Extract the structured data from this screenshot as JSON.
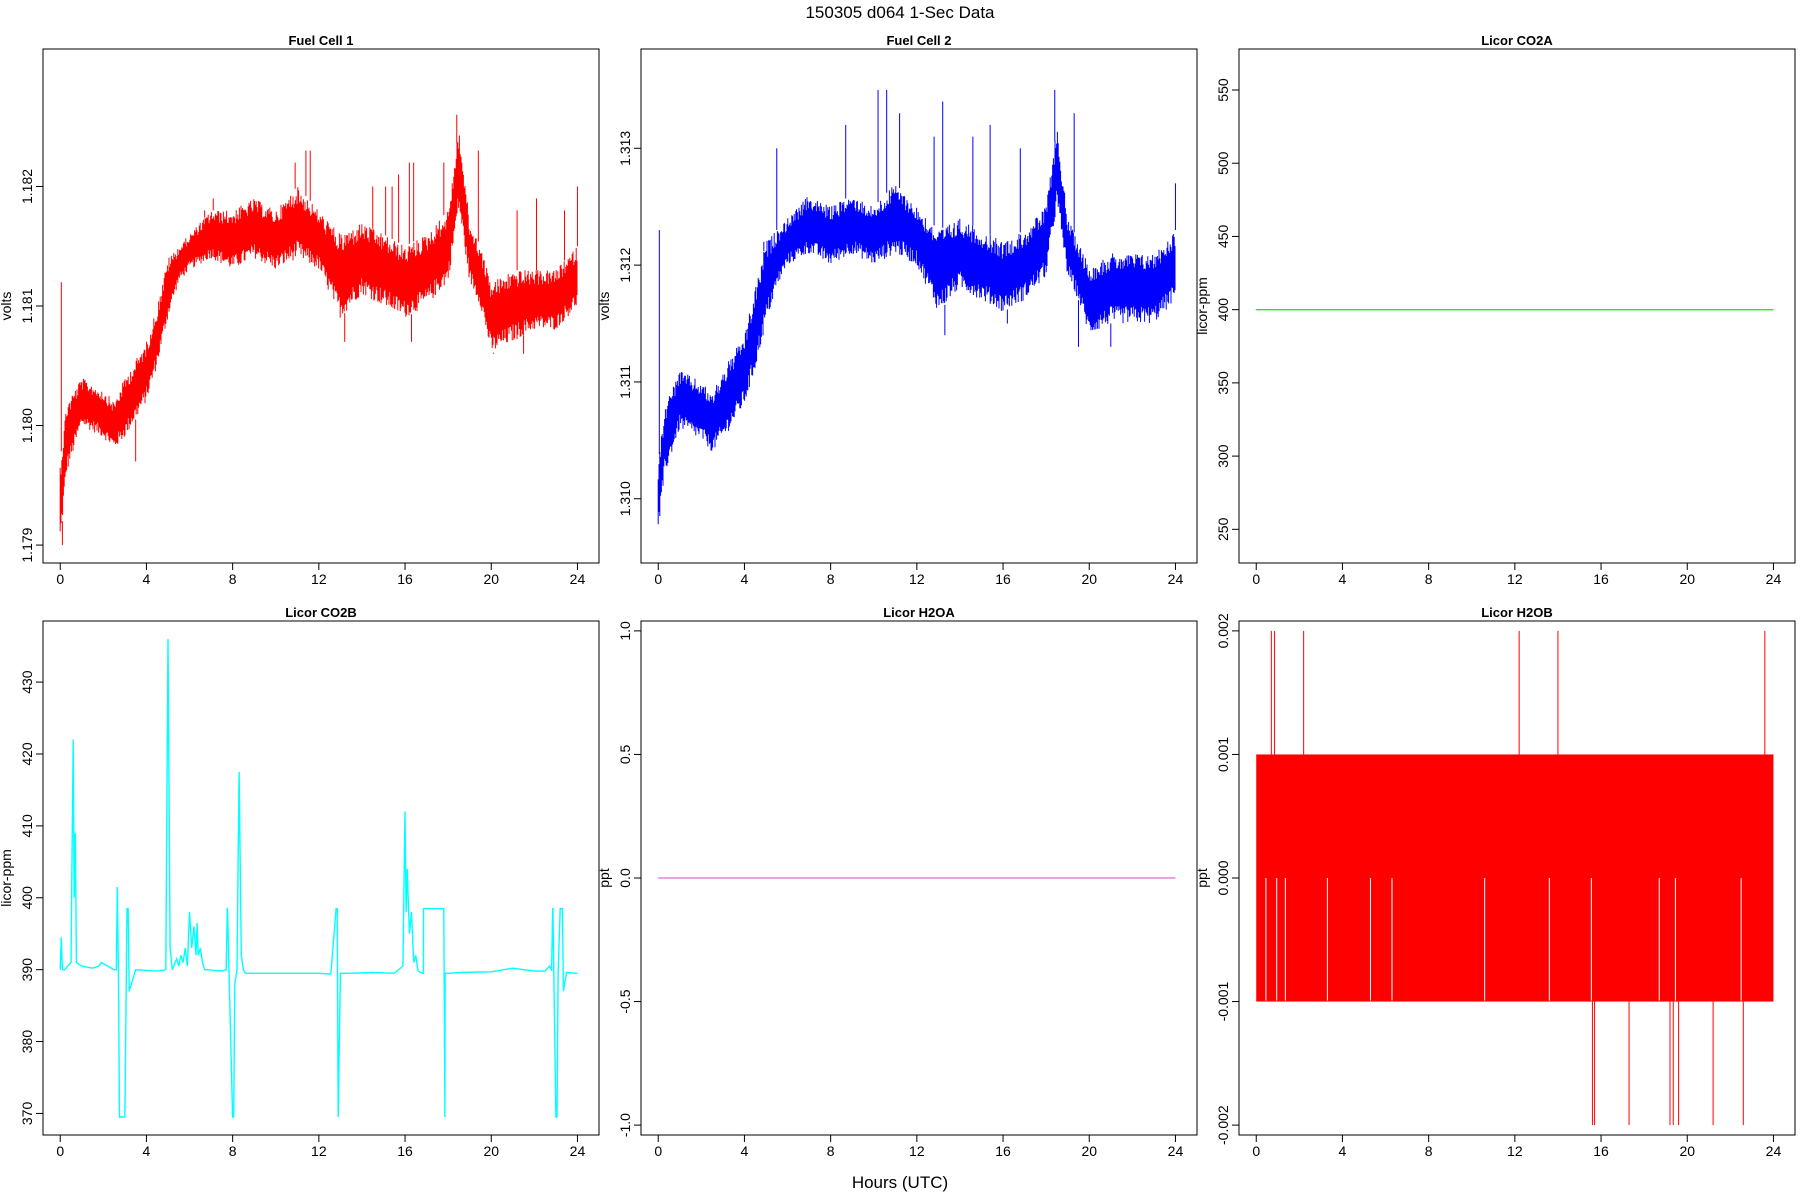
{
  "figure": {
    "title": "150305   d064   1-Sec Data",
    "xlabel": "Hours (UTC)"
  },
  "chart_data": [
    {
      "type": "line",
      "title": "Fuel Cell 1",
      "ylabel": "volts",
      "color": "#ff0000",
      "xlim": [
        -0.8,
        25.0
      ],
      "ylim": [
        1.17885,
        1.18315
      ],
      "xticks": [
        0,
        4,
        8,
        12,
        16,
        20,
        24
      ],
      "yticks": [
        1.179,
        1.18,
        1.181,
        1.182
      ],
      "ytick_labels": [
        "1.179",
        "1.180",
        "1.181",
        "1.182"
      ],
      "series": [
        {
          "band": {
            "x": [
              0,
              0.3,
              1.0,
              2.0,
              2.5,
              3.0,
              4.0,
              4.5,
              5.0,
              5.5,
              6.0,
              7.0,
              8.0,
              9.0,
              10.0,
              11.0,
              12.0,
              13.0,
              14.0,
              15.0,
              16.0,
              17.0,
              18.0,
              18.5,
              19.0,
              19.5,
              20.0,
              21.0,
              22.0,
              23.0,
              24.0
            ],
            "low": [
              1.179,
              1.1796,
              1.18,
              1.1799,
              1.1798,
              1.1799,
              1.1802,
              1.1805,
              1.1809,
              1.1812,
              1.1813,
              1.1814,
              1.1813,
              1.1814,
              1.1813,
              1.1814,
              1.1813,
              1.1809,
              1.1811,
              1.181,
              1.1809,
              1.181,
              1.1812,
              1.1818,
              1.1812,
              1.181,
              1.1806,
              1.1807,
              1.1808,
              1.1808,
              1.181
            ],
            "high": [
              1.1797,
              1.1802,
              1.1804,
              1.1803,
              1.1802,
              1.1804,
              1.1807,
              1.181,
              1.1814,
              1.1815,
              1.1816,
              1.1818,
              1.1818,
              1.1819,
              1.1818,
              1.182,
              1.1818,
              1.1816,
              1.1817,
              1.1816,
              1.1815,
              1.1816,
              1.1818,
              1.1825,
              1.1817,
              1.1815,
              1.1812,
              1.1813,
              1.1813,
              1.1813,
              1.1815
            ]
          },
          "spikes": [
            [
              0.05,
              1.1812
            ],
            [
              6.7,
              1.1818
            ],
            [
              7.1,
              1.1819
            ],
            [
              10.9,
              1.1822
            ],
            [
              11.4,
              1.1823
            ],
            [
              11.6,
              1.1823
            ],
            [
              14.5,
              1.182
            ],
            [
              15.1,
              1.182
            ],
            [
              15.4,
              1.182
            ],
            [
              15.7,
              1.1821
            ],
            [
              16.2,
              1.1822
            ],
            [
              16.4,
              1.1822
            ],
            [
              17.8,
              1.1822
            ],
            [
              18.4,
              1.1826
            ],
            [
              19.4,
              1.1823
            ],
            [
              21.2,
              1.1818
            ],
            [
              22.1,
              1.1819
            ],
            [
              23.4,
              1.1818
            ],
            [
              24.0,
              1.182
            ]
          ],
          "dips": [
            [
              0.1,
              1.179
            ],
            [
              3.5,
              1.1797
            ],
            [
              13.2,
              1.1807
            ],
            [
              16.3,
              1.1807
            ],
            [
              20.1,
              1.1806
            ],
            [
              21.5,
              1.1806
            ]
          ]
        }
      ]
    },
    {
      "type": "line",
      "title": "Fuel Cell 2",
      "ylabel": "volts",
      "color": "#0000ff",
      "xlim": [
        -0.8,
        25.0
      ],
      "ylim": [
        1.30945,
        1.31385
      ],
      "xticks": [
        0,
        4,
        8,
        12,
        16,
        20,
        24
      ],
      "yticks": [
        1.31,
        1.311,
        1.312,
        1.313
      ],
      "ytick_labels": [
        "1.310",
        "1.311",
        "1.312",
        "1.313"
      ],
      "series": [
        {
          "band": {
            "x": [
              0,
              0.3,
              1.0,
              2.0,
              2.5,
              3.0,
              4.0,
              4.5,
              5.0,
              5.5,
              6.0,
              7.0,
              8.0,
              9.0,
              10.0,
              11.0,
              12.0,
              13.0,
              14.0,
              15.0,
              16.0,
              17.0,
              18.0,
              18.5,
              19.0,
              19.5,
              20.0,
              21.0,
              22.0,
              23.0,
              24.0
            ],
            "low": [
              1.3097,
              1.3102,
              1.3106,
              1.3105,
              1.3104,
              1.3105,
              1.3108,
              1.3111,
              1.3115,
              1.3118,
              1.312,
              1.3121,
              1.312,
              1.3121,
              1.312,
              1.3121,
              1.312,
              1.3116,
              1.3118,
              1.3117,
              1.3116,
              1.3117,
              1.3119,
              1.3125,
              1.3119,
              1.3117,
              1.3114,
              1.3115,
              1.3115,
              1.3115,
              1.3117
            ],
            "high": [
              1.3103,
              1.3108,
              1.3111,
              1.311,
              1.3109,
              1.3111,
              1.3114,
              1.3118,
              1.3122,
              1.3123,
              1.3124,
              1.3126,
              1.3125,
              1.3126,
              1.3125,
              1.3127,
              1.3125,
              1.3123,
              1.3124,
              1.3123,
              1.3122,
              1.3123,
              1.3125,
              1.3132,
              1.3124,
              1.3122,
              1.312,
              1.3121,
              1.3121,
              1.3121,
              1.3123
            ]
          },
          "spikes": [
            [
              0.05,
              1.3123
            ],
            [
              4.9,
              1.3122
            ],
            [
              5.5,
              1.313
            ],
            [
              8.7,
              1.3132
            ],
            [
              10.2,
              1.3135
            ],
            [
              10.6,
              1.3135
            ],
            [
              11.2,
              1.3133
            ],
            [
              12.8,
              1.3131
            ],
            [
              13.2,
              1.3134
            ],
            [
              14.6,
              1.3131
            ],
            [
              15.4,
              1.3132
            ],
            [
              16.8,
              1.313
            ],
            [
              18.4,
              1.3135
            ],
            [
              19.3,
              1.3133
            ],
            [
              24.0,
              1.3127
            ]
          ],
          "dips": [
            [
              0.0,
              1.3097
            ],
            [
              13.3,
              1.3114
            ],
            [
              16.2,
              1.3115
            ],
            [
              19.5,
              1.3113
            ],
            [
              21.0,
              1.3113
            ]
          ]
        }
      ]
    },
    {
      "type": "line",
      "title": "Licor CO2A",
      "ylabel": "licor-ppm",
      "color": "#00ff00",
      "xlim": [
        -0.8,
        25.0
      ],
      "ylim": [
        227,
        578
      ],
      "xticks": [
        0,
        4,
        8,
        12,
        16,
        20,
        24
      ],
      "yticks": [
        250,
        300,
        350,
        400,
        450,
        500,
        550
      ],
      "ytick_labels": [
        "250",
        "300",
        "350",
        "400",
        "450",
        "500",
        "550"
      ],
      "series": [
        {
          "x": [
            0,
            24
          ],
          "y": [
            400,
            400
          ]
        }
      ]
    },
    {
      "type": "line",
      "title": "Licor CO2B",
      "ylabel": "licor-ppm",
      "color": "#00ffff",
      "xlim": [
        -0.8,
        25.0
      ],
      "ylim": [
        367,
        438.5
      ],
      "xticks": [
        0,
        4,
        8,
        12,
        16,
        20,
        24
      ],
      "yticks": [
        370,
        380,
        390,
        400,
        410,
        420,
        430
      ],
      "ytick_labels": [
        "370",
        "380",
        "390",
        "400",
        "410",
        "420",
        "430"
      ],
      "series": [
        {
          "x": [
            0,
            0.05,
            0.1,
            0.2,
            0.5,
            0.6,
            0.65,
            0.7,
            0.75,
            1.0,
            1.5,
            1.8,
            1.9,
            2.5,
            2.6,
            2.65,
            2.7,
            2.75,
            2.76,
            3.0,
            3.1,
            3.15,
            3.2,
            3.5,
            4.5,
            4.9,
            5.0,
            5.1,
            5.2,
            5.4,
            5.5,
            5.6,
            5.7,
            5.8,
            5.9,
            6.0,
            6.1,
            6.2,
            6.3,
            6.35,
            6.4,
            6.5,
            6.6,
            6.7,
            6.8,
            7.5,
            7.7,
            7.75,
            7.76,
            8.0,
            8.05,
            8.1,
            8.2,
            8.3,
            8.4,
            8.5,
            8.6,
            9.0,
            12.0,
            12.5,
            12.55,
            12.56,
            12.8,
            12.85,
            12.9,
            13.0,
            13.5,
            14.5,
            15.5,
            15.9,
            16.0,
            16.05,
            16.1,
            16.2,
            16.3,
            16.4,
            16.5,
            16.6,
            16.8,
            16.85,
            16.86,
            17.8,
            17.85,
            17.86,
            18.0,
            18.5,
            20.0,
            21.0,
            22.0,
            22.5,
            22.7,
            22.8,
            22.85,
            22.86,
            23.0,
            23.05,
            23.1,
            23.2,
            23.3,
            23.35,
            23.4,
            23.5,
            24.0
          ],
          "y": [
            390,
            394.5,
            390,
            390,
            391,
            422,
            400,
            409,
            391,
            390.5,
            390.2,
            390.5,
            391,
            390,
            390,
            401.5,
            390,
            369.5,
            369.5,
            369.5,
            398.5,
            398.5,
            387,
            390,
            389.8,
            390,
            436,
            393,
            390,
            391.5,
            390.5,
            392,
            391,
            393,
            390.5,
            398,
            393,
            396,
            392,
            396.5,
            392,
            393,
            391,
            390,
            390,
            389.8,
            390,
            398.5,
            398.5,
            369.5,
            369.5,
            388,
            390,
            417.5,
            392,
            390,
            389.5,
            389.5,
            389.5,
            389.4,
            389.5,
            389.5,
            398.5,
            398.5,
            369.5,
            389.5,
            389.5,
            389.6,
            389.5,
            390.5,
            412,
            398,
            404,
            395,
            398,
            391,
            392,
            389.8,
            389.5,
            389.5,
            398.5,
            398.5,
            369.5,
            389.5,
            389.5,
            389.6,
            389.7,
            390.2,
            389.8,
            389.8,
            390.5,
            390,
            398.5,
            398.5,
            369.5,
            369.5,
            389.5,
            398.5,
            398.5,
            387,
            388,
            389.6,
            389.5
          ]
        }
      ]
    },
    {
      "type": "line",
      "title": "Licor H2OA",
      "ylabel": "ppt",
      "color": "#dd88dd",
      "xlim": [
        -0.8,
        25.0
      ],
      "ylim": [
        -1.04,
        1.04
      ],
      "xticks": [
        0,
        4,
        8,
        12,
        16,
        20,
        24
      ],
      "yticks": [
        -1.0,
        -0.5,
        0.0,
        0.5,
        1.0
      ],
      "ytick_labels": [
        "-1.0",
        "-0.5",
        "0.0",
        "0.5",
        "1.0"
      ],
      "series": [
        {
          "x": [
            0,
            24
          ],
          "y": [
            0,
            0
          ]
        }
      ]
    },
    {
      "type": "line",
      "title": "Licor H2OB",
      "ylabel": "ppt",
      "color": "#ff0000",
      "xlim": [
        -0.8,
        25.0
      ],
      "ylim": [
        -0.00208,
        0.00208
      ],
      "xticks": [
        0,
        4,
        8,
        12,
        16,
        20,
        24
      ],
      "yticks": [
        -0.002,
        -0.001,
        0.0,
        0.001,
        0.002
      ],
      "ytick_labels": [
        "-0.002",
        "-0.001",
        "0.000",
        "0.001",
        "0.002"
      ],
      "series": [
        {
          "band": {
            "x": [
              0,
              24
            ],
            "low": [
              -0.001,
              -0.001
            ],
            "high": [
              0.001,
              0.001
            ]
          },
          "spikes": [
            [
              0.7,
              0.002
            ],
            [
              0.85,
              0.002
            ],
            [
              2.2,
              0.002
            ],
            [
              12.2,
              0.002
            ],
            [
              14.0,
              0.002
            ],
            [
              23.6,
              0.002
            ]
          ],
          "dips": [
            [
              15.6,
              -0.002
            ],
            [
              15.7,
              -0.002
            ],
            [
              17.3,
              -0.002
            ],
            [
              19.2,
              -0.002
            ],
            [
              19.35,
              -0.002
            ],
            [
              19.6,
              -0.002
            ],
            [
              21.2,
              -0.002
            ],
            [
              22.6,
              -0.002
            ]
          ],
          "gaps": [
            0.45,
            0.95,
            1.35,
            3.3,
            5.3,
            6.3,
            10.6,
            13.6,
            15.55,
            18.7,
            19.45,
            22.5
          ]
        }
      ]
    }
  ]
}
